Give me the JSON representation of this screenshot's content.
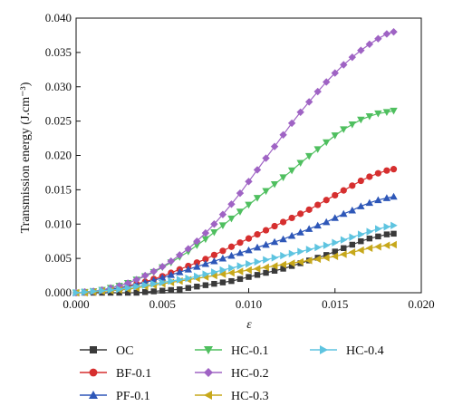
{
  "chart_data": {
    "type": "line",
    "xlabel": "ε",
    "ylabel": "Transmission energy (J.cm⁻³)",
    "xlim": [
      0,
      0.02
    ],
    "ylim": [
      0,
      0.04
    ],
    "xticks": [
      "0.000",
      "0.005",
      "0.010",
      "0.015",
      "0.020"
    ],
    "yticks": [
      "0.000",
      "0.005",
      "0.010",
      "0.015",
      "0.020",
      "0.025",
      "0.030",
      "0.035",
      "0.040"
    ],
    "grid": false,
    "legend_position": "bottom",
    "x": [
      0,
      0.0005,
      0.001,
      0.0015,
      0.002,
      0.0025,
      0.003,
      0.0035,
      0.004,
      0.0045,
      0.005,
      0.0055,
      0.006,
      0.0065,
      0.007,
      0.0075,
      0.008,
      0.0085,
      0.009,
      0.0095,
      0.01,
      0.0105,
      0.011,
      0.0115,
      0.012,
      0.0125,
      0.013,
      0.0135,
      0.014,
      0.0145,
      0.015,
      0.0155,
      0.016,
      0.0165,
      0.017,
      0.0175,
      0.018,
      0.0184
    ],
    "series": [
      {
        "name": "OC",
        "color": "#3a3a3a",
        "marker": "square",
        "values": [
          0,
          0,
          0,
          0,
          0,
          0,
          0,
          0,
          0.0001,
          0.0002,
          0.0003,
          0.0004,
          0.0005,
          0.0007,
          0.0009,
          0.0011,
          0.0013,
          0.0015,
          0.0017,
          0.002,
          0.0023,
          0.0026,
          0.0029,
          0.0032,
          0.0035,
          0.0039,
          0.0043,
          0.0047,
          0.0051,
          0.0055,
          0.006,
          0.0065,
          0.007,
          0.0075,
          0.0079,
          0.0082,
          0.0085,
          0.0086
        ]
      },
      {
        "name": "BF-0.1",
        "color": "#d62f2f",
        "marker": "circle",
        "values": [
          0,
          0.0001,
          0.0002,
          0.0003,
          0.0005,
          0.0007,
          0.001,
          0.0013,
          0.0016,
          0.002,
          0.0024,
          0.0029,
          0.0034,
          0.0039,
          0.0044,
          0.0049,
          0.0055,
          0.0061,
          0.0067,
          0.0073,
          0.0079,
          0.0085,
          0.0091,
          0.0097,
          0.0103,
          0.0109,
          0.0115,
          0.0121,
          0.0128,
          0.0135,
          0.0142,
          0.0149,
          0.0156,
          0.0163,
          0.0169,
          0.0174,
          0.0178,
          0.018
        ]
      },
      {
        "name": "PF-0.1",
        "color": "#2e57b8",
        "marker": "triangle-up",
        "values": [
          0,
          0.0001,
          0.0002,
          0.0003,
          0.0005,
          0.0007,
          0.0009,
          0.0012,
          0.0015,
          0.0018,
          0.0022,
          0.0026,
          0.003,
          0.0034,
          0.0038,
          0.0042,
          0.0046,
          0.005,
          0.0054,
          0.0058,
          0.0062,
          0.0066,
          0.007,
          0.0074,
          0.0078,
          0.0083,
          0.0088,
          0.0093,
          0.0098,
          0.0103,
          0.0109,
          0.0115,
          0.012,
          0.0126,
          0.0131,
          0.0135,
          0.0138,
          0.014
        ]
      },
      {
        "name": "HC-0.1",
        "color": "#4fbf5f",
        "marker": "triangle-down",
        "values": [
          0,
          0.0001,
          0.0002,
          0.0004,
          0.0007,
          0.001,
          0.0014,
          0.0019,
          0.0024,
          0.003,
          0.0037,
          0.0044,
          0.0052,
          0.006,
          0.0069,
          0.0078,
          0.0088,
          0.0098,
          0.0108,
          0.0118,
          0.0128,
          0.0138,
          0.0148,
          0.0158,
          0.0168,
          0.0178,
          0.0189,
          0.0199,
          0.0209,
          0.0219,
          0.0229,
          0.0238,
          0.0245,
          0.0252,
          0.0257,
          0.0261,
          0.0263,
          0.0265
        ]
      },
      {
        "name": "HC-0.2",
        "color": "#9f63c4",
        "marker": "diamond",
        "values": [
          0,
          0.0001,
          0.0002,
          0.0004,
          0.0007,
          0.001,
          0.0014,
          0.0019,
          0.0025,
          0.0031,
          0.0038,
          0.0046,
          0.0055,
          0.0064,
          0.0075,
          0.0087,
          0.01,
          0.0114,
          0.0129,
          0.0145,
          0.0162,
          0.0179,
          0.0196,
          0.0213,
          0.023,
          0.0247,
          0.0263,
          0.0278,
          0.0293,
          0.0307,
          0.032,
          0.0332,
          0.0343,
          0.0353,
          0.0362,
          0.037,
          0.0377,
          0.038
        ]
      },
      {
        "name": "HC-0.3",
        "color": "#c7a81b",
        "marker": "triangle-left",
        "values": [
          0,
          0,
          0.0001,
          0.0002,
          0.0003,
          0.0004,
          0.0005,
          0.0007,
          0.0009,
          0.0011,
          0.0013,
          0.0015,
          0.0017,
          0.0019,
          0.0021,
          0.0023,
          0.0025,
          0.0027,
          0.0029,
          0.0031,
          0.0033,
          0.0035,
          0.0037,
          0.0039,
          0.0041,
          0.0043,
          0.0045,
          0.0047,
          0.0049,
          0.0051,
          0.0053,
          0.0056,
          0.0059,
          0.0062,
          0.0065,
          0.0067,
          0.0069,
          0.007
        ]
      },
      {
        "name": "HC-0.4",
        "color": "#5ec4e0",
        "marker": "triangle-right",
        "values": [
          0,
          0.0001,
          0.0002,
          0.0003,
          0.0004,
          0.0005,
          0.0007,
          0.0009,
          0.0011,
          0.0013,
          0.0015,
          0.0017,
          0.0019,
          0.0021,
          0.0024,
          0.0027,
          0.003,
          0.0033,
          0.0036,
          0.0039,
          0.0042,
          0.0045,
          0.0048,
          0.0051,
          0.0054,
          0.0057,
          0.006,
          0.0063,
          0.0066,
          0.0069,
          0.0073,
          0.0077,
          0.0081,
          0.0085,
          0.0089,
          0.0093,
          0.0096,
          0.0098
        ]
      }
    ]
  }
}
